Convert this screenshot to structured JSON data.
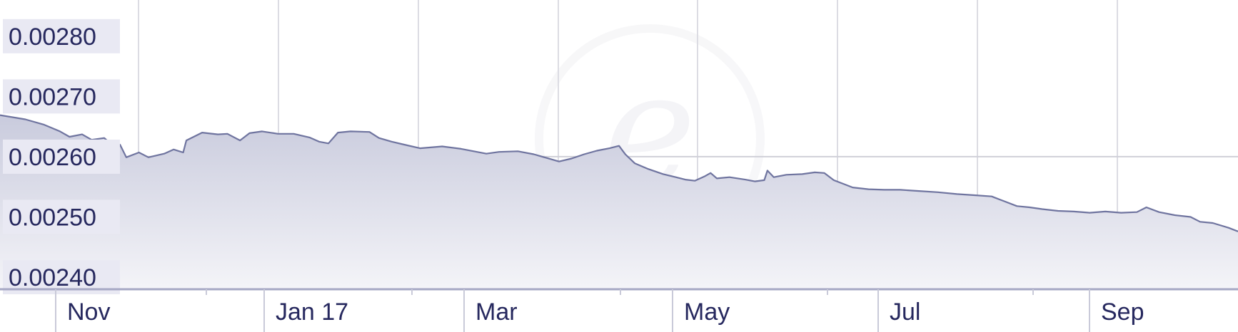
{
  "chart_data": {
    "type": "area",
    "title": "",
    "xlabel": "",
    "ylabel": "",
    "ylim": [
      0.00238,
      0.00286
    ],
    "yticks": [
      "0.00280",
      "0.00270",
      "0.00260",
      "0.00250",
      "0.00240"
    ],
    "xticks": [
      "Nov",
      "Jan 17",
      "Mar",
      "May",
      "Jul",
      "Sep"
    ],
    "grid": true,
    "legend": "none",
    "colors": {
      "line": "#6f749f",
      "fill_top": "#c9cbdd",
      "fill_bottom": "#f4f4f8",
      "tick_text": "#26285e",
      "tick_label_bg": "#e9e9f3"
    },
    "series": [
      {
        "values": [
          [
            0,
            0.002669
          ],
          [
            8,
            0.002662
          ],
          [
            14,
            0.002653
          ],
          [
            19,
            0.002642
          ],
          [
            22,
            0.002633
          ],
          [
            26,
            0.002637
          ],
          [
            29,
            0.002628
          ],
          [
            33,
            0.002631
          ],
          [
            35,
            0.002622
          ],
          [
            38,
            0.00262
          ],
          [
            40,
            0.002599
          ],
          [
            44,
            0.002607
          ],
          [
            47,
            0.002599
          ],
          [
            52,
            0.002605
          ],
          [
            55,
            0.002612
          ],
          [
            58,
            0.002607
          ],
          [
            59,
            0.002627
          ],
          [
            64,
            0.00264
          ],
          [
            69,
            0.002637
          ],
          [
            72,
            0.002638
          ],
          [
            76,
            0.002627
          ],
          [
            79,
            0.002639
          ],
          [
            83,
            0.002642
          ],
          [
            88,
            0.002638
          ],
          [
            93,
            0.002638
          ],
          [
            98,
            0.002632
          ],
          [
            101,
            0.002625
          ],
          [
            104,
            0.002622
          ],
          [
            107,
            0.00264
          ],
          [
            111,
            0.002642
          ],
          [
            117,
            0.002641
          ],
          [
            120,
            0.002631
          ],
          [
            124,
            0.002625
          ],
          [
            128,
            0.00262
          ],
          [
            133,
            0.002614
          ],
          [
            140,
            0.002617
          ],
          [
            146,
            0.002613
          ],
          [
            150,
            0.002609
          ],
          [
            154,
            0.002605
          ],
          [
            158,
            0.002608
          ],
          [
            164,
            0.002609
          ],
          [
            169,
            0.002604
          ],
          [
            173,
            0.002598
          ],
          [
            177,
            0.002592
          ],
          [
            181,
            0.002597
          ],
          [
            185,
            0.002604
          ],
          [
            189,
            0.00261
          ],
          [
            193,
            0.002614
          ],
          [
            196,
            0.002618
          ],
          [
            198,
            0.002604
          ],
          [
            201,
            0.002589
          ],
          [
            205,
            0.00258
          ],
          [
            210,
            0.002571
          ],
          [
            214,
            0.002566
          ],
          [
            217,
            0.002562
          ],
          [
            220,
            0.00256
          ],
          [
            223,
            0.002567
          ],
          [
            225,
            0.002573
          ],
          [
            227,
            0.002564
          ],
          [
            231,
            0.002566
          ],
          [
            236,
            0.002562
          ],
          [
            239,
            0.002559
          ],
          [
            242,
            0.002561
          ],
          [
            243,
            0.002577
          ],
          [
            245,
            0.002566
          ],
          [
            249,
            0.00257
          ],
          [
            254,
            0.002571
          ],
          [
            258,
            0.002574
          ],
          [
            261,
            0.002573
          ],
          [
            264,
            0.002561
          ],
          [
            267,
            0.002555
          ],
          [
            270,
            0.002549
          ],
          [
            275,
            0.002546
          ],
          [
            280,
            0.002545
          ],
          [
            285,
            0.002545
          ],
          [
            291,
            0.002543
          ],
          [
            297,
            0.002541
          ],
          [
            303,
            0.002538
          ],
          [
            309,
            0.002536
          ],
          [
            314,
            0.002534
          ],
          [
            318,
            0.002526
          ],
          [
            322,
            0.002518
          ],
          [
            326,
            0.002516
          ],
          [
            330,
            0.002513
          ],
          [
            335,
            0.00251
          ],
          [
            340,
            0.002509
          ],
          [
            345,
            0.002507
          ],
          [
            350,
            0.002509
          ],
          [
            355,
            0.002507
          ],
          [
            360,
            0.002508
          ],
          [
            363,
            0.002516
          ],
          [
            367,
            0.002508
          ],
          [
            372,
            0.002503
          ],
          [
            377,
            0.0025
          ],
          [
            380,
            0.002492
          ],
          [
            384,
            0.00249
          ],
          [
            389,
            0.002482
          ],
          [
            392,
            0.002476
          ]
        ]
      }
    ]
  }
}
